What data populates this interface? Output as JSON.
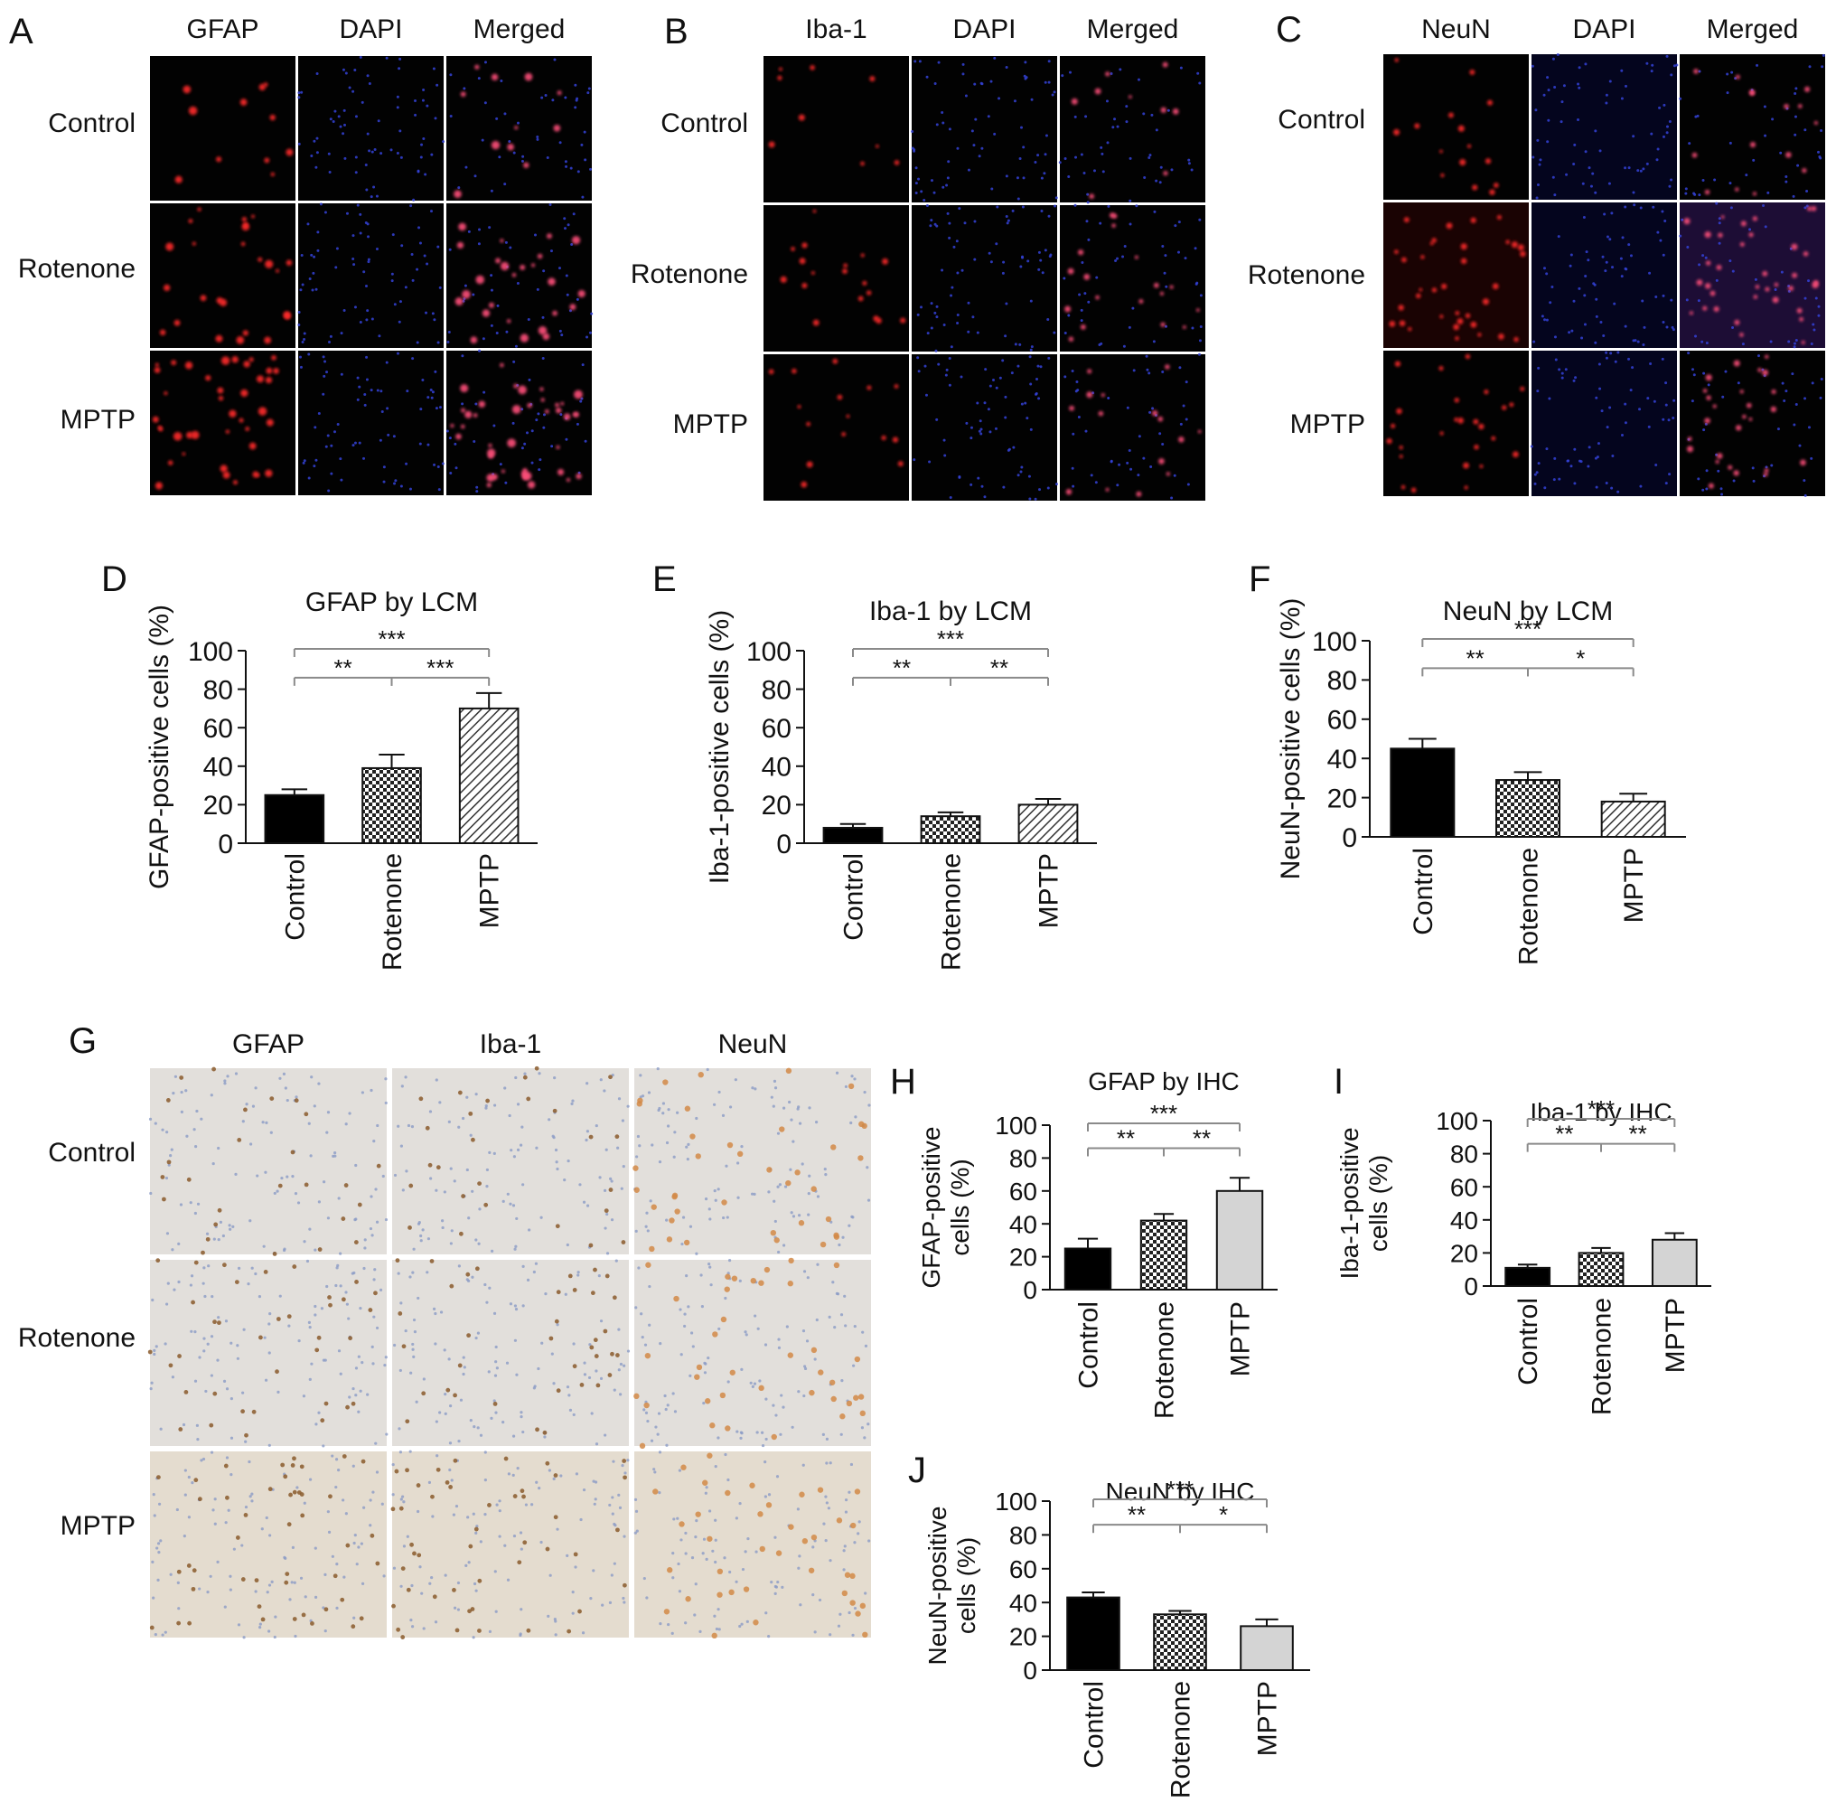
{
  "micrograph_panels": [
    {
      "letter": "A",
      "columns": [
        "GFAP",
        "DAPI",
        "Merged"
      ],
      "rows": [
        "Control",
        "Rotenone",
        "MPTP"
      ],
      "style": "fluorescence"
    },
    {
      "letter": "B",
      "columns": [
        "Iba-1",
        "DAPI",
        "Merged"
      ],
      "rows": [
        "Control",
        "Rotenone",
        "MPTP"
      ],
      "style": "fluorescence"
    },
    {
      "letter": "C",
      "columns": [
        "NeuN",
        "DAPI",
        "Merged"
      ],
      "rows": [
        "Control",
        "Rotenone",
        "MPTP"
      ],
      "style": "fluorescence"
    },
    {
      "letter": "G",
      "columns": [
        "GFAP",
        "Iba-1",
        "NeuN"
      ],
      "rows": [
        "Control",
        "Rotenone",
        "MPTP"
      ],
      "style": "ihc"
    }
  ],
  "chart_data": [
    {
      "letter": "D",
      "type": "bar",
      "title": "GFAP by LCM",
      "ylabel": [
        "GFAP-positive cells (%)"
      ],
      "categories": [
        "Control",
        "Rotenone",
        "MPTP"
      ],
      "values": [
        25,
        39,
        70
      ],
      "errors": [
        3,
        7,
        8
      ],
      "ylim": [
        0,
        100
      ],
      "yticks": [
        0,
        20,
        40,
        60,
        80,
        100
      ],
      "significance": [
        {
          "label": "***",
          "from": 0,
          "to": 2
        },
        {
          "label": "**",
          "from": 0,
          "to": 1
        },
        {
          "label": "***",
          "from": 1,
          "to": 2
        }
      ]
    },
    {
      "letter": "E",
      "type": "bar",
      "title": "Iba-1 by LCM",
      "ylabel": [
        "Iba-1-positive cells (%)"
      ],
      "categories": [
        "Control",
        "Rotenone",
        "MPTP"
      ],
      "values": [
        8,
        14,
        20
      ],
      "errors": [
        2,
        2,
        3
      ],
      "ylim": [
        0,
        100
      ],
      "yticks": [
        0,
        20,
        40,
        60,
        80,
        100
      ],
      "significance": [
        {
          "label": "***",
          "from": 0,
          "to": 2
        },
        {
          "label": "**",
          "from": 0,
          "to": 1
        },
        {
          "label": "**",
          "from": 1,
          "to": 2
        }
      ]
    },
    {
      "letter": "F",
      "type": "bar",
      "title": "NeuN by LCM",
      "ylabel": [
        "NeuN-positive cells (%)"
      ],
      "categories": [
        "Control",
        "Rotenone",
        "MPTP"
      ],
      "values": [
        45,
        29,
        18
      ],
      "errors": [
        5,
        4,
        4
      ],
      "ylim": [
        0,
        100
      ],
      "yticks": [
        0,
        20,
        40,
        60,
        80,
        100
      ],
      "significance": [
        {
          "label": "***",
          "from": 0,
          "to": 2
        },
        {
          "label": "**",
          "from": 0,
          "to": 1
        },
        {
          "label": "*",
          "from": 1,
          "to": 2
        }
      ]
    },
    {
      "letter": "H",
      "type": "bar",
      "title": "GFAP by IHC",
      "ylabel": [
        "GFAP-positive",
        "cells (%)"
      ],
      "categories": [
        "Control",
        "Rotenone",
        "MPTP"
      ],
      "values": [
        25,
        42,
        60
      ],
      "errors": [
        6,
        4,
        8
      ],
      "ylim": [
        0,
        100
      ],
      "yticks": [
        0,
        20,
        40,
        60,
        80,
        100
      ],
      "significance": [
        {
          "label": "***",
          "from": 0,
          "to": 2
        },
        {
          "label": "**",
          "from": 0,
          "to": 1
        },
        {
          "label": "**",
          "from": 1,
          "to": 2
        }
      ]
    },
    {
      "letter": "I",
      "type": "bar",
      "title": "Iba-1 by IHC",
      "ylabel": [
        "Iba-1-positive",
        "cells (%)"
      ],
      "categories": [
        "Control",
        "Rotenone",
        "MPTP"
      ],
      "values": [
        11,
        20,
        28
      ],
      "errors": [
        2,
        3,
        4
      ],
      "ylim": [
        0,
        100
      ],
      "yticks": [
        0,
        20,
        40,
        60,
        80,
        100
      ],
      "significance": [
        {
          "label": "***",
          "from": 0,
          "to": 2
        },
        {
          "label": "**",
          "from": 0,
          "to": 1
        },
        {
          "label": "**",
          "from": 1,
          "to": 2
        }
      ]
    },
    {
      "letter": "J",
      "type": "bar",
      "title": "NeuN by IHC",
      "ylabel": [
        "NeuN-positive",
        "cells (%)"
      ],
      "categories": [
        "Control",
        "Rotenone",
        "MPTP"
      ],
      "values": [
        43,
        33,
        26
      ],
      "errors": [
        3,
        2,
        4
      ],
      "ylim": [
        0,
        100
      ],
      "yticks": [
        0,
        20,
        40,
        60,
        80,
        100
      ],
      "significance": [
        {
          "label": "***",
          "from": 0,
          "to": 2
        },
        {
          "label": "**",
          "from": 0,
          "to": 1
        },
        {
          "label": "*",
          "from": 1,
          "to": 2
        }
      ]
    }
  ],
  "bar_styles": {
    "lcm": [
      "solid-black",
      "checker",
      "diagonal-hatch"
    ],
    "ihc": [
      "solid-black",
      "checker",
      "light-gray"
    ]
  },
  "colors": {
    "axis": "#111111",
    "significance": "#8a8a8a",
    "bar_black": "#000000",
    "bar_gray": "#d4d4d4"
  }
}
